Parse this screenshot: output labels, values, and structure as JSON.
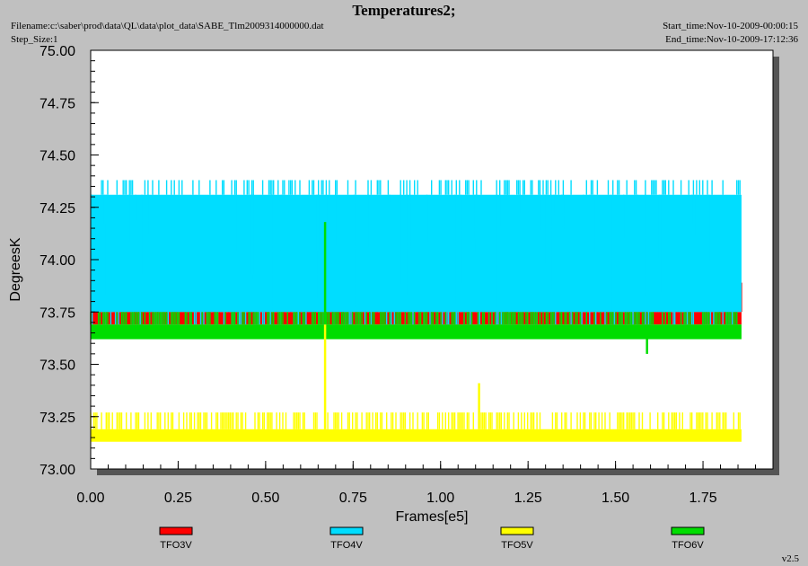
{
  "header": {
    "title": "Temperatures2;",
    "filename": "Filename:c:\\saber\\prod\\data\\QL\\data\\plot_data\\SABE_Tlm2009314000000.dat",
    "step_size": "Step_Size:1",
    "start_time": "Start_time:Nov-10-2009-00:00:15",
    "end_time": "End_time:Nov-10-2009-17:12:36"
  },
  "version": "v2.5",
  "chart_data": {
    "type": "line",
    "xlabel": "Frames[e5]",
    "ylabel": "DegreesK",
    "xlim": [
      0,
      1.95
    ],
    "ylim": [
      73.0,
      75.0
    ],
    "x_ticks": [
      "0.00",
      "0.25",
      "0.50",
      "0.75",
      "1.00",
      "1.25",
      "1.50",
      "1.75"
    ],
    "y_ticks": [
      "73.00",
      "73.25",
      "73.50",
      "73.75",
      "74.00",
      "74.25",
      "74.50",
      "74.75",
      "75.00"
    ],
    "x_range": [
      0.0,
      1.86
    ],
    "legend_position": "bottom",
    "series": [
      {
        "name": "TFO3V",
        "color": "#ff0000",
        "base_range": [
          73.69,
          73.75
        ],
        "spikes_to": 73.82,
        "max": 73.89
      },
      {
        "name": "TFO4V",
        "color": "#00ddff",
        "base_range": [
          73.75,
          74.31
        ],
        "low_dips_to": 73.69,
        "high_spikes_to": 74.38,
        "min_at_start": 73.94
      },
      {
        "name": "TFO5V",
        "color": "#ffff00",
        "base_range": [
          73.13,
          73.19
        ],
        "spikes_to": 73.27,
        "outliers": [
          {
            "x": 0.67,
            "y": 73.69
          },
          {
            "x": 1.11,
            "y": 73.41
          }
        ]
      },
      {
        "name": "TFO6V",
        "color": "#00dd00",
        "base_range": [
          73.62,
          73.69
        ],
        "spikes_to": 73.75,
        "outliers": [
          {
            "x": 0.67,
            "y": 74.18
          },
          {
            "x": 1.59,
            "y": 73.55
          }
        ]
      }
    ]
  }
}
